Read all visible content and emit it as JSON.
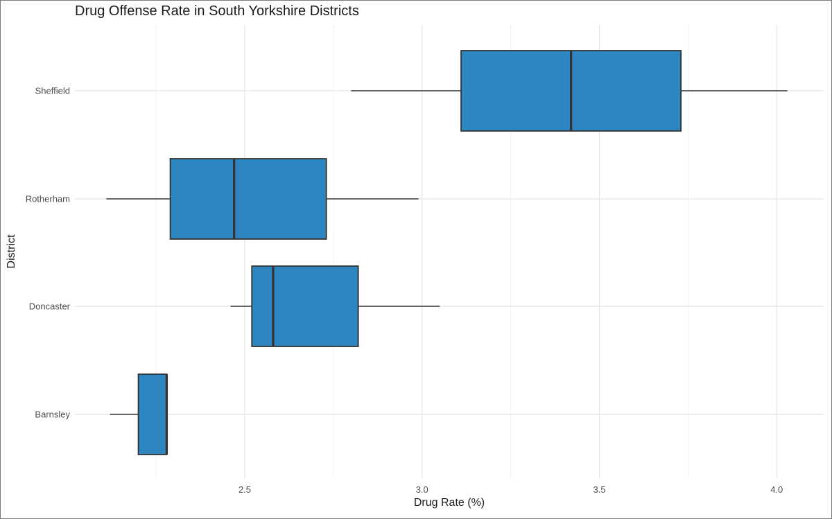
{
  "chart_data": {
    "type": "boxplot",
    "orientation": "horizontal",
    "title": "Drug Offense Rate in South Yorkshire Districts",
    "xlabel": "Drug Rate (%)",
    "ylabel": "District",
    "xlim": [
      2.0,
      4.13
    ],
    "x_ticks": [
      {
        "value": 2.5,
        "label": "2.5"
      },
      {
        "value": 3.0,
        "label": "3.0"
      },
      {
        "value": 3.5,
        "label": "3.5"
      },
      {
        "value": 4.0,
        "label": "4.0"
      }
    ],
    "x_minor_ticks": [
      2.25,
      2.75,
      3.25,
      3.75
    ],
    "grid": true,
    "legend": "none",
    "box_fill": "#2e86c1",
    "box_stroke": "#333333",
    "categories": [
      "Sheffield",
      "Rotherham",
      "Doncaster",
      "Barnsley"
    ],
    "boxes": [
      {
        "category": "Sheffield",
        "whisker_low": 2.8,
        "q1": 3.11,
        "median": 3.42,
        "q3": 3.73,
        "whisker_high": 4.03
      },
      {
        "category": "Rotherham",
        "whisker_low": 2.11,
        "q1": 2.29,
        "median": 2.47,
        "q3": 2.73,
        "whisker_high": 2.99
      },
      {
        "category": "Doncaster",
        "whisker_low": 2.46,
        "q1": 2.52,
        "median": 2.58,
        "q3": 2.82,
        "whisker_high": 3.05
      },
      {
        "category": "Barnsley",
        "whisker_low": 2.12,
        "q1": 2.2,
        "median": 2.28,
        "q3": 2.28,
        "whisker_high": 2.28
      }
    ]
  }
}
